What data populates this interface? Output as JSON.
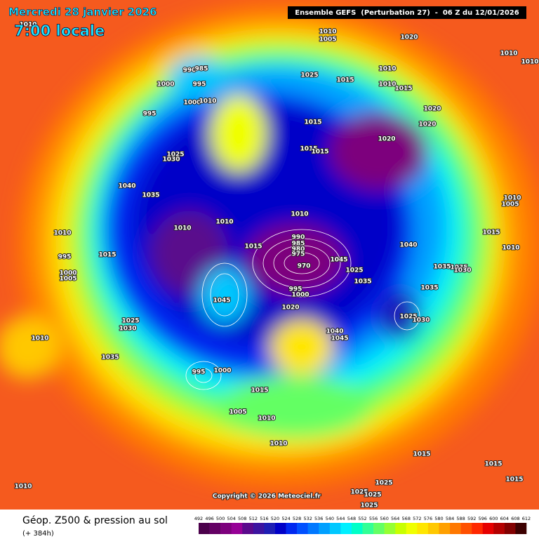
{
  "header": {
    "date": "Mercredi 28 janvier 2026",
    "time": "7:00 locale",
    "model": "Ensemble GEFS  (Perturbation 27)  -  06 Z du 12/01/2026"
  },
  "map": {
    "copyright": "Copyright © 2026 Meteociel.fr",
    "pressure_labels": [
      1010,
      1010,
      1005,
      1020,
      1010,
      1010,
      990,
      985,
      1000,
      995,
      1025,
      1015,
      1010,
      1010,
      1015,
      1000,
      1010,
      1020,
      995,
      1015,
      1020,
      1020,
      1015,
      1015,
      1025,
      1030,
      1040,
      1035,
      1010,
      1005,
      1010,
      1010,
      1010,
      1010,
      1015,
      1015,
      1040,
      1010,
      995,
      1015,
      990,
      985,
      980,
      975,
      1035,
      970,
      1045,
      1035,
      1030,
      1000,
      1005,
      1025,
      1035,
      995,
      1000,
      1035,
      1045,
      1020,
      1025,
      1030,
      1025,
      1030,
      1040,
      1045,
      1010,
      1035,
      995,
      1000,
      1015,
      1005,
      1010,
      1010,
      1015,
      1015,
      1015,
      1010,
      1025,
      1025,
      1025,
      1025
    ]
  },
  "footer": {
    "title": "Géop. Z500 & pression au sol",
    "subtitle": "(+ 384h)",
    "colorbar": {
      "labels": [
        492,
        496,
        500,
        504,
        508,
        512,
        516,
        520,
        524,
        528,
        532,
        536,
        540,
        544,
        548,
        552,
        556,
        560,
        564,
        568,
        572,
        576,
        580,
        584,
        588,
        592,
        596,
        600,
        604,
        608,
        612
      ],
      "colors": [
        "#4b004b",
        "#640064",
        "#7d007d",
        "#960096",
        "#5a0a8c",
        "#3c14a0",
        "#1e1eb4",
        "#0000c8",
        "#0028f0",
        "#0050ff",
        "#0078ff",
        "#00a0ff",
        "#00c8ff",
        "#00f0ff",
        "#00ffc8",
        "#32ff96",
        "#64ff64",
        "#96ff32",
        "#c8ff00",
        "#f0ff00",
        "#ffe600",
        "#ffc800",
        "#ffa000",
        "#ff7800",
        "#ff5000",
        "#ff2800",
        "#e60000",
        "#b40000",
        "#820000",
        "#3c0000"
      ]
    }
  }
}
